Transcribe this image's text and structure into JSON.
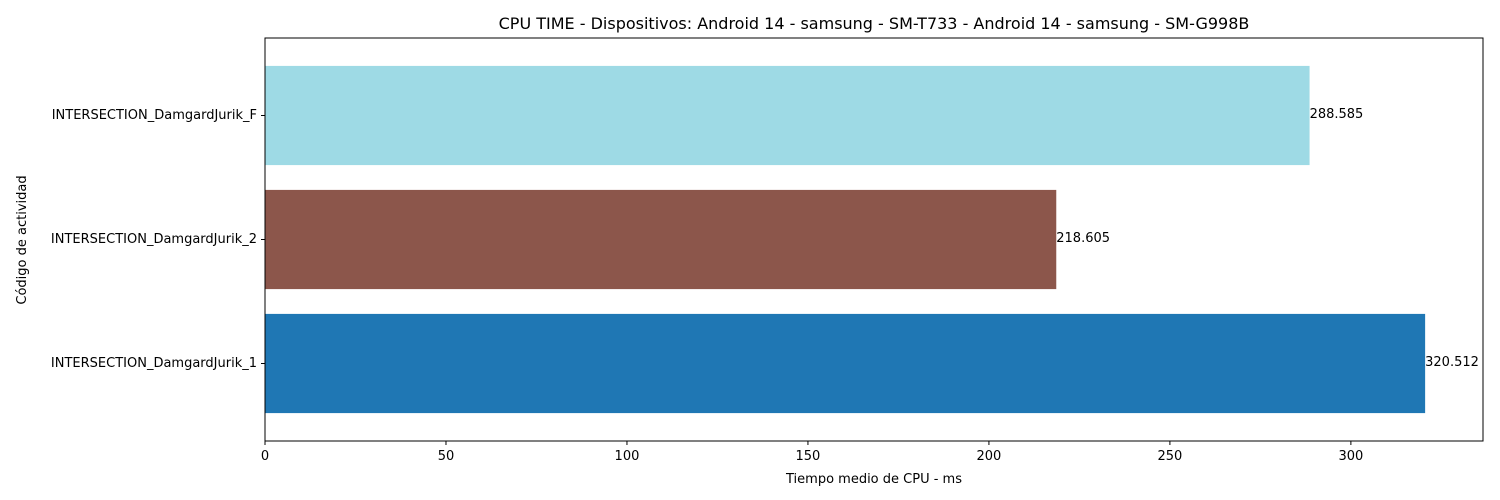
{
  "chart_data": {
    "type": "bar",
    "orientation": "horizontal",
    "title": "CPU TIME - Dispositivos: Android 14 - samsung - SM-T733 - Android 14 - samsung - SM-G998B",
    "xlabel": "Tiempo medio de CPU - ms",
    "ylabel": "Código de actividad",
    "categories": [
      "INTERSECTION_DamgardJurik_1",
      "INTERSECTION_DamgardJurik_2",
      "INTERSECTION_DamgardJurik_F"
    ],
    "values": [
      320.512,
      218.605,
      288.585
    ],
    "value_labels": [
      "320.512",
      "218.605",
      "288.585"
    ],
    "colors": [
      "#1f77b4",
      "#8c564b",
      "#9edae5"
    ],
    "xlim": [
      0,
      336.5
    ],
    "xticks": [
      0,
      50,
      100,
      150,
      200,
      250,
      300
    ],
    "xtick_labels": [
      "0",
      "50",
      "100",
      "150",
      "200",
      "250",
      "300"
    ],
    "grid": false,
    "legend": "none"
  }
}
